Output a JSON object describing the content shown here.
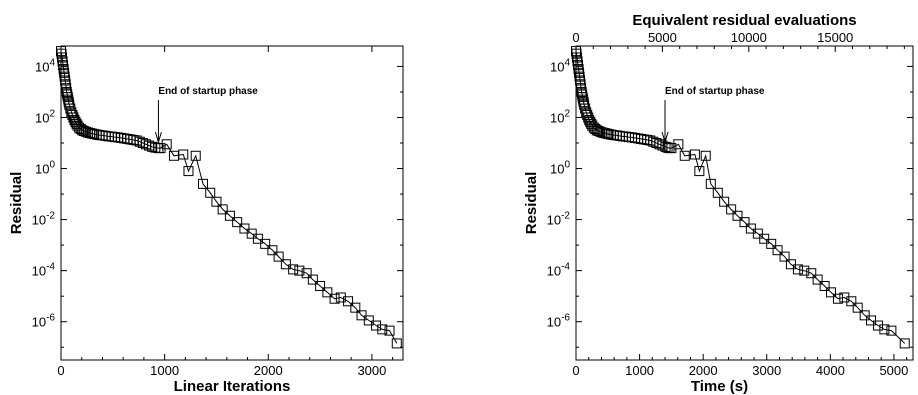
{
  "chart_data": [
    {
      "type": "line",
      "xlabel": "Linear Iterations",
      "ylabel": "Residual",
      "top_xlabel": "",
      "xlim": [
        0,
        3300
      ],
      "ylim_log10": [
        -7.5,
        4.8
      ],
      "y_scale": "log",
      "xticks": [
        "0",
        "1000",
        "2000",
        "3000"
      ],
      "yticks": [
        "10^4",
        "10^2",
        "10^0",
        "10^-2",
        "10^-4",
        "10^-6"
      ],
      "top_xticks": [],
      "annotation": {
        "text": "End of startup phase",
        "x": 940,
        "log10_y": 0.8
      },
      "series": [
        {
          "marker": "open-square",
          "x": [
            0,
            5,
            10,
            15,
            20,
            25,
            30,
            35,
            40,
            45,
            50,
            55,
            60,
            65,
            70,
            75,
            80,
            90,
            100,
            110,
            120,
            130,
            140,
            150,
            160,
            175,
            190,
            205,
            220,
            240,
            260,
            280,
            300,
            320,
            345,
            370,
            400,
            430,
            460,
            490,
            520,
            550,
            580,
            610,
            640,
            670,
            700,
            730,
            760,
            790,
            820,
            850,
            880,
            910,
            940,
            960,
            1020,
            1090,
            1180,
            1230,
            1300,
            1370,
            1440,
            1500,
            1560,
            1630,
            1700,
            1770,
            1840,
            1900,
            1970,
            2040,
            2100,
            2170,
            2240,
            2300,
            2370,
            2430,
            2500,
            2570,
            2640,
            2700,
            2770,
            2840,
            2900,
            2970,
            3040,
            3100,
            3170,
            3240
          ],
          "log10_y": [
            4.6,
            4.5,
            4.35,
            4.2,
            4.05,
            3.9,
            3.75,
            3.6,
            3.45,
            3.3,
            3.15,
            3.0,
            2.9,
            2.8,
            2.7,
            2.6,
            2.5,
            2.35,
            2.2,
            2.1,
            2.0,
            1.9,
            1.82,
            1.75,
            1.68,
            1.6,
            1.55,
            1.5,
            1.47,
            1.44,
            1.41,
            1.39,
            1.37,
            1.35,
            1.33,
            1.31,
            1.3,
            1.28,
            1.26,
            1.25,
            1.23,
            1.22,
            1.2,
            1.18,
            1.16,
            1.14,
            1.12,
            1.1,
            1.05,
            1.0,
            0.95,
            0.9,
            0.85,
            0.82,
            0.8,
            0.8,
            0.95,
            0.5,
            0.55,
            -0.1,
            0.5,
            -0.6,
            -0.95,
            -1.3,
            -1.6,
            -1.85,
            -2.1,
            -2.35,
            -2.55,
            -2.75,
            -2.95,
            -3.2,
            -3.45,
            -3.75,
            -3.95,
            -4.0,
            -4.1,
            -4.35,
            -4.6,
            -4.85,
            -5.1,
            -5.05,
            -5.2,
            -5.45,
            -5.75,
            -5.95,
            -6.15,
            -6.3,
            -6.35,
            -6.85
          ]
        }
      ]
    },
    {
      "type": "line",
      "xlabel": "Time (s)",
      "ylabel": "Residual",
      "top_xlabel": "Equivalent residual evaluations",
      "xlim": [
        0,
        5300
      ],
      "top_xlim": [
        0,
        19500
      ],
      "ylim_log10": [
        -7.5,
        4.8
      ],
      "y_scale": "log",
      "xticks": [
        "0",
        "1000",
        "2000",
        "3000",
        "4000",
        "5000"
      ],
      "top_xticks": [
        "0",
        "5000",
        "10000",
        "15000"
      ],
      "yticks": [
        "10^4",
        "10^2",
        "10^0",
        "10^-2",
        "10^-4",
        "10^-6"
      ],
      "annotation": {
        "text": "End of startup phase",
        "x": 1400,
        "log10_y": 0.8
      },
      "series": [
        {
          "marker": "open-square",
          "x": [
            0,
            8,
            16,
            24,
            32,
            40,
            48,
            56,
            64,
            72,
            80,
            88,
            96,
            104,
            112,
            120,
            128,
            144,
            160,
            176,
            192,
            208,
            224,
            240,
            256,
            280,
            304,
            328,
            352,
            384,
            416,
            448,
            480,
            512,
            552,
            592,
            640,
            688,
            736,
            784,
            832,
            880,
            928,
            976,
            1024,
            1072,
            1120,
            1168,
            1216,
            1264,
            1312,
            1360,
            1408,
            1440,
            1470,
            1500,
            1610,
            1710,
            1870,
            1940,
            2040,
            2120,
            2230,
            2330,
            2440,
            2540,
            2650,
            2750,
            2860,
            2960,
            3070,
            3170,
            3280,
            3380,
            3490,
            3590,
            3700,
            3800,
            3910,
            4010,
            4120,
            4220,
            4330,
            4430,
            4540,
            4640,
            4750,
            4850,
            4960,
            5170
          ],
          "log10_y": [
            4.6,
            4.5,
            4.35,
            4.2,
            4.05,
            3.9,
            3.75,
            3.6,
            3.45,
            3.3,
            3.15,
            3.0,
            2.9,
            2.8,
            2.7,
            2.6,
            2.5,
            2.35,
            2.2,
            2.1,
            2.0,
            1.9,
            1.82,
            1.75,
            1.68,
            1.6,
            1.55,
            1.5,
            1.47,
            1.44,
            1.41,
            1.39,
            1.37,
            1.35,
            1.33,
            1.31,
            1.3,
            1.28,
            1.26,
            1.25,
            1.23,
            1.22,
            1.2,
            1.18,
            1.16,
            1.14,
            1.12,
            1.1,
            1.05,
            1.0,
            0.95,
            0.9,
            0.85,
            0.82,
            0.8,
            0.8,
            0.95,
            0.5,
            0.55,
            -0.1,
            0.5,
            -0.6,
            -0.95,
            -1.3,
            -1.6,
            -1.85,
            -2.1,
            -2.35,
            -2.55,
            -2.75,
            -2.95,
            -3.2,
            -3.45,
            -3.75,
            -3.95,
            -4.0,
            -4.1,
            -4.35,
            -4.6,
            -4.85,
            -5.1,
            -5.05,
            -5.2,
            -5.45,
            -5.75,
            -5.95,
            -6.15,
            -6.3,
            -6.35,
            -6.85
          ]
        }
      ]
    }
  ]
}
